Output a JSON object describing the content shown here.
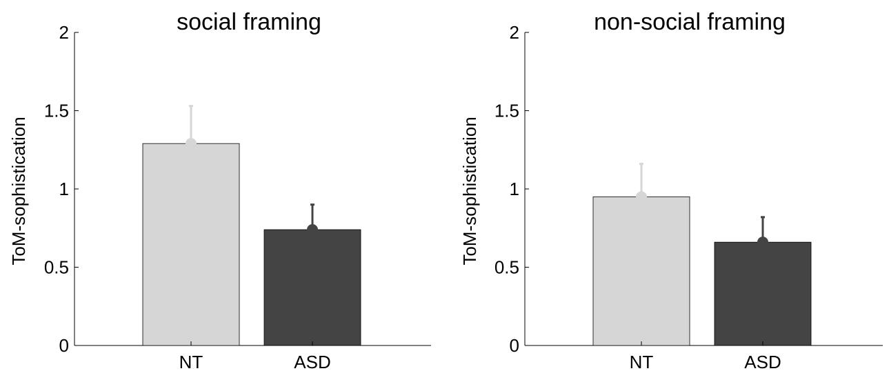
{
  "chart_data": [
    {
      "type": "bar",
      "title": "social framing",
      "xlabel": "",
      "ylabel": "ToM-sophistication",
      "ylim": [
        0,
        2
      ],
      "yticks": [
        "0",
        "0.5",
        "1",
        "1.5",
        "2"
      ],
      "categories": [
        "NT",
        "ASD"
      ],
      "values": [
        1.29,
        0.74
      ],
      "error_upper": [
        1.53,
        0.9
      ],
      "colors": [
        "#d6d6d6",
        "#444444"
      ],
      "grid": false,
      "legend": "none"
    },
    {
      "type": "bar",
      "title": "non-social framing",
      "xlabel": "",
      "ylabel": "ToM-sophistication",
      "ylim": [
        0,
        2
      ],
      "yticks": [
        "0",
        "0.5",
        "1",
        "1.5",
        "2"
      ],
      "categories": [
        "NT",
        "ASD"
      ],
      "values": [
        0.95,
        0.66
      ],
      "error_upper": [
        1.16,
        0.82
      ],
      "colors": [
        "#d6d6d6",
        "#444444"
      ],
      "grid": false,
      "legend": "none"
    }
  ]
}
